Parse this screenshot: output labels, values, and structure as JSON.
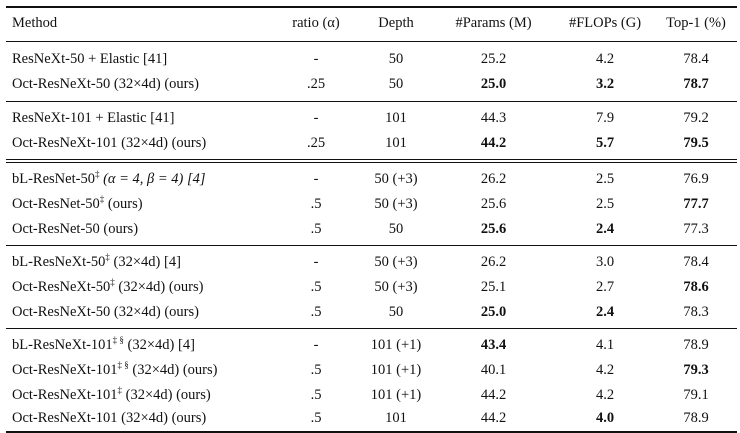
{
  "header": {
    "method": "Method",
    "ratio": "ratio (α)",
    "depth": "Depth",
    "params": "#Params (M)",
    "flops": "#FLOPs (G)",
    "top1": "Top-1 (%)"
  },
  "rows": [
    {
      "method": "ResNeXt-50 + Elastic [41]",
      "ratio": "-",
      "depth": "50",
      "params": "25.2",
      "flops": "4.2",
      "top1": "78.4"
    },
    {
      "method": "Oct-ResNeXt-50 (32×4d) (ours)",
      "ratio": ".25",
      "depth": "50",
      "params": "25.0",
      "flops": "3.2",
      "top1": "78.7"
    },
    {
      "method": "ResNeXt-101 + Elastic [41]",
      "ratio": "-",
      "depth": "101",
      "params": "44.3",
      "flops": "7.9",
      "top1": "79.2"
    },
    {
      "method": "Oct-ResNeXt-101 (32×4d) (ours)",
      "ratio": ".25",
      "depth": "101",
      "params": "44.2",
      "flops": "5.7",
      "top1": "79.5"
    },
    {
      "method_a": "bL-ResNet-50",
      "sup": "‡",
      "method_b": " (α = 4, β = 4)  [4]",
      "ratio": "-",
      "depth": "50 (+3)",
      "params": "26.2",
      "flops": "2.5",
      "top1": "76.9"
    },
    {
      "method_a": "Oct-ResNet-50",
      "sup": "‡",
      "method_b": " (ours)",
      "ratio": ".5",
      "depth": "50 (+3)",
      "params": "25.6",
      "flops": "2.5",
      "top1": "77.7"
    },
    {
      "method": "Oct-ResNet-50 (ours)",
      "ratio": ".5",
      "depth": "50",
      "params": "25.6",
      "flops": "2.4",
      "top1": "77.3"
    },
    {
      "method_a": "bL-ResNeXt-50",
      "sup": "‡",
      "method_b": " (32×4d) [4]",
      "ratio": "-",
      "depth": "50 (+3)",
      "params": "26.2",
      "flops": "3.0",
      "top1": "78.4"
    },
    {
      "method_a": "Oct-ResNeXt-50",
      "sup": "‡",
      "method_b": " (32×4d) (ours)",
      "ratio": ".5",
      "depth": "50 (+3)",
      "params": "25.1",
      "flops": "2.7",
      "top1": "78.6"
    },
    {
      "method": "Oct-ResNeXt-50 (32×4d) (ours)",
      "ratio": ".5",
      "depth": "50",
      "params": "25.0",
      "flops": "2.4",
      "top1": "78.3"
    },
    {
      "method_a": "bL-ResNeXt-101",
      "sup": "‡ §",
      "method_b": " (32×4d) [4]",
      "ratio": "-",
      "depth": "101 (+1)",
      "params": "43.4",
      "flops": "4.1",
      "top1": "78.9"
    },
    {
      "method_a": "Oct-ResNeXt-101",
      "sup": "‡ §",
      "method_b": " (32×4d) (ours)",
      "ratio": ".5",
      "depth": "101 (+1)",
      "params": "40.1",
      "flops": "4.2",
      "top1": "79.3"
    },
    {
      "method_a": "Oct-ResNeXt-101",
      "sup": "‡",
      "method_b": " (32×4d) (ours)",
      "ratio": ".5",
      "depth": "101 (+1)",
      "params": "44.2",
      "flops": "4.2",
      "top1": "79.1"
    },
    {
      "method": "Oct-ResNeXt-101 (32×4d) (ours)",
      "ratio": ".5",
      "depth": "101",
      "params": "44.2",
      "flops": "4.0",
      "top1": "78.9"
    }
  ]
}
